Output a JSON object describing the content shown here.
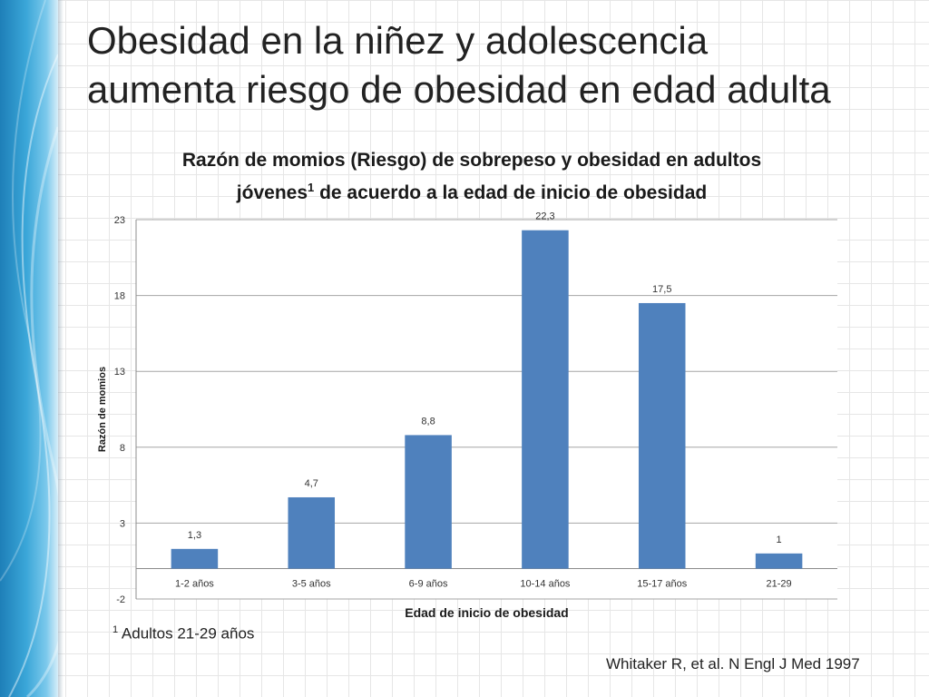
{
  "slide": {
    "title_line1": "Obesidad en la niñez y adolescencia",
    "title_line2": "aumenta riesgo de obesidad en edad adulta",
    "footnote_mark": "1",
    "footnote_text": " Adultos 21-29 años",
    "citation": "Whitaker R, et al. N Engl J Med 1997"
  },
  "colors": {
    "bar": "#4f81bd",
    "accent": "#2a96cf"
  },
  "chart_data": {
    "type": "bar",
    "title_line1": "Razón de momios (Riesgo) de sobrepeso y obesidad en adultos",
    "title_line2_main": "jóvenes",
    "title_line2_sup": "1",
    "title_line2_rest": " de acuerdo a la edad de inicio de obesidad",
    "xlabel": "Edad de inicio de obesidad",
    "ylabel": "Razón de momios",
    "categories": [
      "1-2 años",
      "3-5 años",
      "6-9 años",
      "10-14 años",
      "15-17 años",
      "21-29"
    ],
    "values": [
      1.3,
      4.7,
      8.8,
      22.3,
      17.5,
      1
    ],
    "data_labels": [
      "1,3",
      "4,7",
      "8,8",
      "22,3",
      "17,5",
      "1"
    ],
    "ylim": [
      -2,
      23
    ],
    "yticks": [
      -2,
      3,
      8,
      13,
      18,
      23
    ],
    "grid": true,
    "legend": "none"
  }
}
